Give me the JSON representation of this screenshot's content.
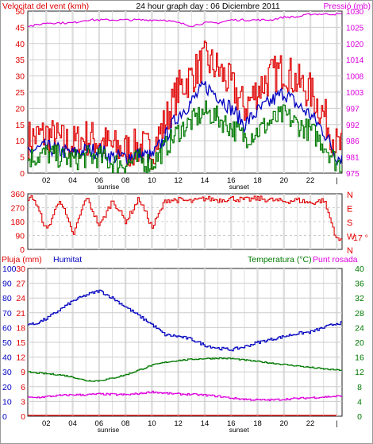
{
  "header": {
    "wind_label": "Velocitat del vent (kmh)",
    "title": "24 hour graph day : 06 Diciembre 2011",
    "pressure_label": "Pressió (mb)"
  },
  "lower_header": {
    "rain_label": "Pluja (mm)",
    "humidity_label": "Humitat",
    "temp_label": "Temperatura (°C)",
    "dew_label": "Punt rosada"
  },
  "markers": {
    "sunrise": "sunrise",
    "sunset": "sunset"
  },
  "direction_readout": "17 °",
  "colors": {
    "red": "#e00000",
    "blue": "#0000c0",
    "green": "#007a00",
    "magenta": "#dd00dd",
    "grid": "#cccccc",
    "hour_band": "#dedede",
    "border": "#222222"
  },
  "chart_data": [
    {
      "type": "line",
      "name": "wind-pressure",
      "x_ticks": [
        "02",
        "04",
        "06",
        "08",
        "10",
        "12",
        "14",
        "16",
        "18",
        "20",
        "22",
        "|"
      ],
      "y_left_ticks": [
        "0",
        "5",
        "10",
        "15",
        "20",
        "25",
        "30",
        "35",
        "40",
        "45",
        "50"
      ],
      "y_right_ticks": [
        "975",
        "981",
        "986",
        "992",
        "997",
        "1003",
        "1008",
        "1014",
        "1020",
        "1025",
        "1030"
      ],
      "ylim": [
        0,
        50
      ],
      "y2lim": [
        975,
        1030
      ],
      "x": [
        0,
        1,
        2,
        3,
        4,
        5,
        6,
        7,
        8,
        9,
        10,
        11,
        12,
        13,
        14,
        15,
        16,
        17,
        18,
        19,
        20,
        21,
        22,
        23,
        24
      ],
      "series": [
        {
          "name": "Velocitat del vent (kmh)",
          "color": "red",
          "axis": "left",
          "values": [
            10,
            11,
            12,
            10,
            9,
            11,
            10,
            8,
            7,
            8,
            7,
            16,
            26,
            30,
            35,
            32,
            27,
            20,
            26,
            30,
            32,
            28,
            25,
            18,
            8
          ]
        },
        {
          "name": "",
          "color": "blue",
          "axis": "left",
          "values": [
            6,
            7,
            8,
            7,
            6,
            7,
            7,
            5,
            5,
            6,
            5,
            11,
            18,
            22,
            27,
            24,
            20,
            15,
            19,
            22,
            25,
            21,
            18,
            13,
            5
          ]
        },
        {
          "name": "",
          "color": "green",
          "axis": "left",
          "values": [
            4,
            5,
            6,
            5,
            4,
            5,
            5,
            3,
            3,
            4,
            3,
            8,
            13,
            16,
            19,
            17,
            14,
            11,
            13,
            16,
            18,
            15,
            13,
            9,
            3
          ]
        },
        {
          "name": "Pressió (mb)",
          "color": "magenta",
          "axis": "right",
          "values": [
            1025,
            1025,
            1026,
            1026,
            1026,
            1027,
            1027,
            1027,
            1027,
            1027,
            1027,
            1027,
            1026,
            1025,
            1026,
            1026,
            1027,
            1027,
            1027,
            1027,
            1028,
            1028,
            1029,
            1029,
            1029
          ]
        }
      ]
    },
    {
      "type": "line",
      "name": "wind-direction",
      "y_left_ticks": [
        "0",
        "90",
        "180",
        "270",
        "360"
      ],
      "y_right_labels": [
        "N",
        "W",
        "S",
        "E",
        "N"
      ],
      "ylim": [
        0,
        360
      ],
      "x": [
        0,
        1,
        2,
        3,
        4,
        5,
        6,
        7,
        8,
        9,
        10,
        11,
        12,
        13,
        14,
        15,
        16,
        17,
        18,
        19,
        20,
        21,
        22,
        23,
        24
      ],
      "series": [
        {
          "name": "",
          "color": "red",
          "values": [
            330,
            335,
            120,
            330,
            90,
            340,
            150,
            320,
            180,
            330,
            140,
            320,
            320,
            310,
            330,
            320,
            330,
            320,
            330,
            320,
            310,
            320,
            300,
            320,
            60
          ]
        }
      ]
    },
    {
      "type": "line",
      "name": "humidity-temperature",
      "x_ticks": [
        "02",
        "04",
        "06",
        "08",
        "10",
        "12",
        "14",
        "16",
        "18",
        "20",
        "22",
        "|"
      ],
      "y_rain_ticks": [
        "0",
        "3",
        "6",
        "9",
        "12",
        "15",
        "18",
        "21",
        "24",
        "27",
        "30"
      ],
      "y_hum_ticks": [
        "0",
        "10",
        "20",
        "30",
        "40",
        "50",
        "60",
        "70",
        "80",
        "90",
        "100"
      ],
      "y_right_ticks": [
        "0",
        "4",
        "8",
        "12",
        "16",
        "20",
        "24",
        "28",
        "32",
        "36",
        "40"
      ],
      "ylim": [
        0,
        100
      ],
      "y2lim": [
        0,
        40
      ],
      "x": [
        0,
        1,
        2,
        3,
        4,
        5,
        6,
        7,
        8,
        9,
        10,
        11,
        12,
        13,
        14,
        15,
        16,
        17,
        18,
        19,
        20,
        21,
        22,
        23,
        24
      ],
      "series": [
        {
          "name": "Humitat",
          "color": "blue",
          "axis": "left",
          "values": [
            64,
            62,
            66,
            72,
            78,
            82,
            85,
            80,
            74,
            68,
            62,
            55,
            54,
            52,
            48,
            46,
            45,
            47,
            50,
            52,
            54,
            56,
            57,
            60,
            63
          ]
        },
        {
          "name": "Temperatura (°C)",
          "color": "green",
          "axis": "right",
          "values": [
            12.2,
            11.8,
            11.5,
            11.2,
            10.6,
            9.6,
            9.6,
            10.3,
            11.2,
            12.5,
            13.8,
            14.6,
            15.1,
            15.4,
            15.6,
            15.7,
            15.6,
            15.2,
            14.8,
            14.4,
            14.0,
            13.6,
            13.2,
            12.8,
            12.5
          ]
        },
        {
          "name": "Punt rosada",
          "color": "magenta",
          "axis": "right",
          "values": [
            5.2,
            5.0,
            5.3,
            5.6,
            5.8,
            5.8,
            6.0,
            5.9,
            5.8,
            6.1,
            6.6,
            6.2,
            6.0,
            5.9,
            5.7,
            5.4,
            4.9,
            4.6,
            4.4,
            4.4,
            4.6,
            4.8,
            5.0,
            5.2,
            5.4
          ]
        },
        {
          "name": "Pluja (mm)",
          "color": "red",
          "axis": "rain",
          "values": [
            0,
            0,
            0,
            0,
            0,
            0,
            0,
            0,
            0,
            0,
            0,
            0,
            0,
            0,
            0,
            0,
            0,
            0,
            0,
            0,
            0,
            0,
            0,
            0,
            0
          ]
        }
      ]
    }
  ]
}
